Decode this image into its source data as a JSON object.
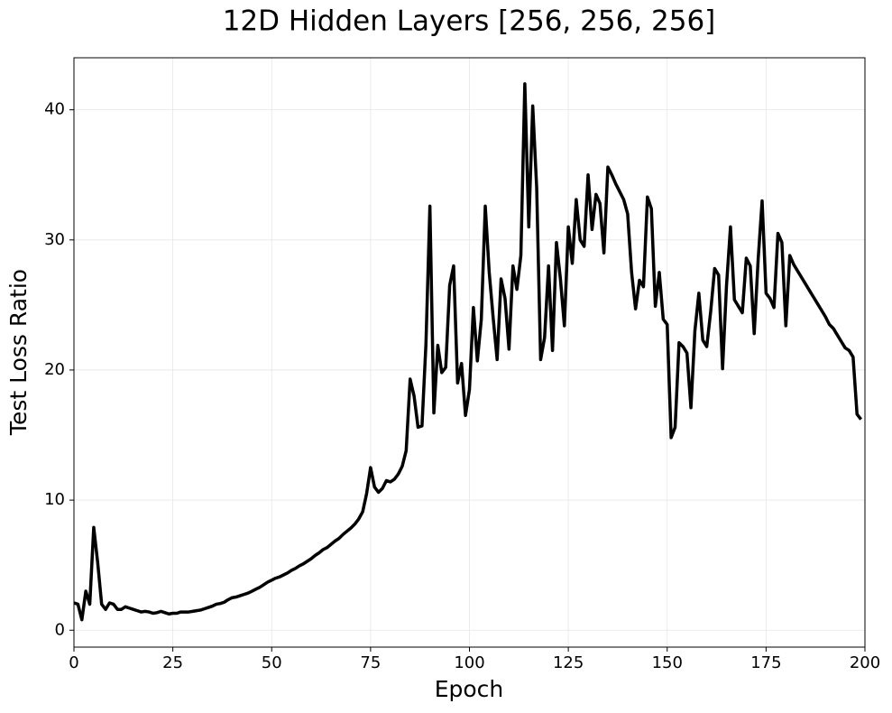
{
  "chart_data": {
    "type": "line",
    "title": "12D Hidden Layers [256, 256, 256]",
    "x_label": "Epoch",
    "y_label": "Test Loss Ratio",
    "xlim": [
      0,
      200
    ],
    "ylim": [
      -1.3,
      44
    ],
    "xticks": [
      0,
      25,
      50,
      75,
      100,
      125,
      150,
      175,
      200
    ],
    "yticks": [
      0,
      10,
      20,
      30,
      40
    ],
    "grid": true,
    "x": [
      0,
      1,
      2,
      3,
      4,
      5,
      6,
      7,
      8,
      9,
      10,
      11,
      12,
      13,
      14,
      15,
      16,
      17,
      18,
      19,
      20,
      21,
      22,
      23,
      24,
      25,
      26,
      27,
      28,
      29,
      30,
      31,
      32,
      33,
      34,
      35,
      36,
      37,
      38,
      39,
      40,
      41,
      42,
      43,
      44,
      45,
      46,
      47,
      48,
      49,
      50,
      51,
      52,
      53,
      54,
      55,
      56,
      57,
      58,
      59,
      60,
      61,
      62,
      63,
      64,
      65,
      66,
      67,
      68,
      69,
      70,
      71,
      72,
      73,
      74,
      75,
      76,
      77,
      78,
      79,
      80,
      81,
      82,
      83,
      84,
      85,
      86,
      87,
      88,
      89,
      90,
      91,
      92,
      93,
      94,
      95,
      96,
      97,
      98,
      99,
      100,
      101,
      102,
      103,
      104,
      105,
      106,
      107,
      108,
      109,
      110,
      111,
      112,
      113,
      114,
      115,
      116,
      117,
      118,
      119,
      120,
      121,
      122,
      123,
      124,
      125,
      126,
      127,
      128,
      129,
      130,
      131,
      132,
      133,
      134,
      135,
      136,
      137,
      138,
      139,
      140,
      141,
      142,
      143,
      144,
      145,
      146,
      147,
      148,
      149,
      150,
      151,
      152,
      153,
      154,
      155,
      156,
      157,
      158,
      159,
      160,
      161,
      162,
      163,
      164,
      165,
      166,
      167,
      168,
      169,
      170,
      171,
      172,
      173,
      174,
      175,
      176,
      177,
      178,
      179,
      180,
      181,
      182,
      183,
      184,
      185,
      186,
      187,
      188,
      189,
      190,
      191,
      192,
      193,
      194,
      195,
      196,
      197,
      198,
      199
    ],
    "series": [
      {
        "color": "#000000",
        "values": [
          2.1,
          2.0,
          0.8,
          3.0,
          2.0,
          7.9,
          5.2,
          2.0,
          1.6,
          2.1,
          2.0,
          1.6,
          1.6,
          1.8,
          1.7,
          1.6,
          1.5,
          1.4,
          1.45,
          1.4,
          1.3,
          1.35,
          1.45,
          1.35,
          1.25,
          1.3,
          1.3,
          1.4,
          1.4,
          1.4,
          1.45,
          1.5,
          1.55,
          1.65,
          1.75,
          1.85,
          2.0,
          2.05,
          2.15,
          2.35,
          2.5,
          2.55,
          2.65,
          2.75,
          2.85,
          3.0,
          3.15,
          3.3,
          3.5,
          3.7,
          3.85,
          4.0,
          4.1,
          4.25,
          4.4,
          4.6,
          4.75,
          4.95,
          5.1,
          5.3,
          5.5,
          5.75,
          5.95,
          6.2,
          6.35,
          6.6,
          6.85,
          7.05,
          7.35,
          7.6,
          7.85,
          8.15,
          8.55,
          9.1,
          10.5,
          12.5,
          11.0,
          10.6,
          10.9,
          11.5,
          11.4,
          11.6,
          12.0,
          12.6,
          13.8,
          19.3,
          18.0,
          15.6,
          15.7,
          22.0,
          32.6,
          16.7,
          21.9,
          19.8,
          20.2,
          26.5,
          28.0,
          19.0,
          20.5,
          16.5,
          18.5,
          24.8,
          20.7,
          23.9,
          32.6,
          27.5,
          24.0,
          20.8,
          27.0,
          25.5,
          21.6,
          28.0,
          26.2,
          28.8,
          42.0,
          31.0,
          40.3,
          34.0,
          20.8,
          22.5,
          28.0,
          21.5,
          29.8,
          27.0,
          23.4,
          31.0,
          28.2,
          33.1,
          30.0,
          29.5,
          35.0,
          30.8,
          33.5,
          32.8,
          29.0,
          35.6,
          35.0,
          34.3,
          33.7,
          33.1,
          32.0,
          27.5,
          24.7,
          26.9,
          26.4,
          33.3,
          32.4,
          24.9,
          27.5,
          23.9,
          23.5,
          14.8,
          15.6,
          22.1,
          21.8,
          21.3,
          17.1,
          23.0,
          25.9,
          22.3,
          21.8,
          24.5,
          27.8,
          27.3,
          20.1,
          26.5,
          31.0,
          25.4,
          24.9,
          24.4,
          28.6,
          28.0,
          22.8,
          28.5,
          33.0,
          25.9,
          25.5,
          24.8,
          30.5,
          29.8,
          23.4,
          28.8,
          28.1,
          27.6,
          27.1,
          26.6,
          26.1,
          25.6,
          25.1,
          24.6,
          24.1,
          23.5,
          23.2,
          22.7,
          22.2,
          21.7,
          21.5,
          21.0,
          16.6,
          16.2
        ]
      }
    ]
  }
}
